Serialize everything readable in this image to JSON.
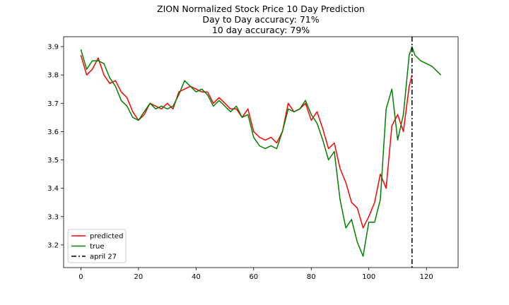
{
  "chart_data": {
    "type": "line",
    "title": "ZION Normalized Stock Price 10 Day Prediction",
    "subtitle_lines": [
      "Day to Day accuracy: 71%",
      "10 day accuracy: 79%"
    ],
    "xlabel": "",
    "ylabel": "",
    "xlim": [
      -6,
      131
    ],
    "ylim": [
      3.12,
      3.935
    ],
    "xticks": [
      0,
      20,
      40,
      60,
      80,
      100,
      120
    ],
    "yticks": [
      3.2,
      3.3,
      3.4,
      3.5,
      3.6,
      3.7,
      3.8,
      3.9
    ],
    "grid": false,
    "legend_placement": "lower-left",
    "series": [
      {
        "name": "predicted",
        "color": "#ff0000",
        "x": [
          0,
          2,
          4,
          6,
          8,
          10,
          12,
          14,
          16,
          18,
          20,
          22,
          24,
          26,
          28,
          30,
          32,
          34,
          36,
          38,
          40,
          42,
          44,
          46,
          48,
          50,
          52,
          54,
          56,
          58,
          60,
          62,
          64,
          66,
          68,
          70,
          72,
          74,
          76,
          78,
          80,
          82,
          84,
          86,
          88,
          90,
          92,
          94,
          96,
          98,
          100,
          102,
          104,
          106,
          108,
          110,
          112,
          114,
          115
        ],
        "y": [
          3.87,
          3.8,
          3.82,
          3.86,
          3.8,
          3.77,
          3.78,
          3.74,
          3.72,
          3.67,
          3.64,
          3.66,
          3.7,
          3.69,
          3.68,
          3.7,
          3.68,
          3.74,
          3.75,
          3.76,
          3.75,
          3.74,
          3.74,
          3.7,
          3.72,
          3.7,
          3.68,
          3.68,
          3.65,
          3.68,
          3.6,
          3.58,
          3.57,
          3.58,
          3.56,
          3.6,
          3.7,
          3.67,
          3.68,
          3.7,
          3.64,
          3.67,
          3.61,
          3.54,
          3.56,
          3.47,
          3.42,
          3.35,
          3.33,
          3.26,
          3.3,
          3.35,
          3.45,
          3.4,
          3.62,
          3.66,
          3.6,
          3.76,
          3.8
        ]
      },
      {
        "name": "true",
        "color": "#008000",
        "x": [
          0,
          2,
          4,
          6,
          8,
          10,
          12,
          14,
          16,
          18,
          20,
          22,
          24,
          26,
          28,
          30,
          32,
          34,
          36,
          38,
          40,
          42,
          44,
          46,
          48,
          50,
          52,
          54,
          56,
          58,
          60,
          62,
          64,
          66,
          68,
          70,
          72,
          74,
          76,
          78,
          80,
          82,
          84,
          86,
          88,
          90,
          92,
          94,
          96,
          98,
          100,
          102,
          104,
          106,
          108,
          110,
          112,
          114,
          115,
          116,
          118,
          120,
          122,
          124,
          125
        ],
        "y": [
          3.89,
          3.82,
          3.85,
          3.85,
          3.84,
          3.79,
          3.76,
          3.71,
          3.69,
          3.65,
          3.64,
          3.67,
          3.7,
          3.68,
          3.69,
          3.68,
          3.69,
          3.73,
          3.78,
          3.76,
          3.74,
          3.75,
          3.73,
          3.69,
          3.71,
          3.69,
          3.67,
          3.69,
          3.65,
          3.66,
          3.58,
          3.55,
          3.54,
          3.55,
          3.54,
          3.6,
          3.68,
          3.67,
          3.68,
          3.71,
          3.66,
          3.63,
          3.57,
          3.5,
          3.53,
          3.36,
          3.26,
          3.29,
          3.21,
          3.16,
          3.28,
          3.28,
          3.36,
          3.68,
          3.75,
          3.57,
          3.66,
          3.87,
          3.9,
          3.87,
          3.85,
          3.84,
          3.83,
          3.81,
          3.8
        ]
      }
    ],
    "vline": {
      "name": "april 27",
      "x": 115,
      "color": "#000000"
    }
  }
}
